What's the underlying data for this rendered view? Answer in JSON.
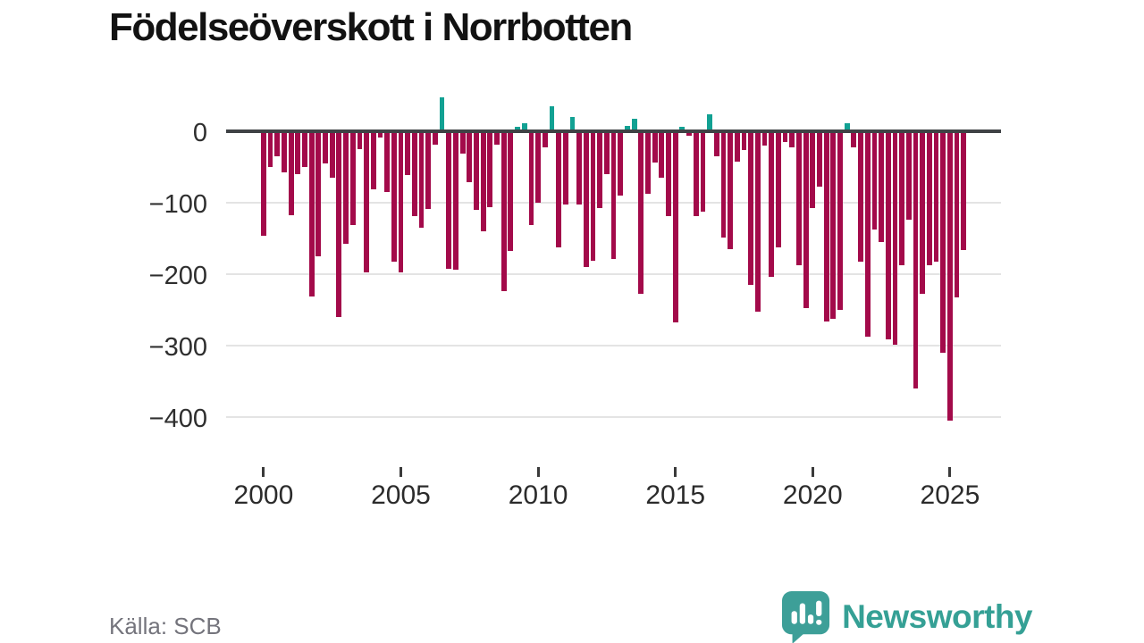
{
  "chart_data": {
    "type": "bar",
    "title": "Födelseöverskott i Norrbotten",
    "source": "Källa: SCB",
    "periodicity": "quarterly",
    "grid": true,
    "legend": false,
    "xlabel": "",
    "ylabel": "",
    "ylim": [
      -460,
      60
    ],
    "x_axis": {
      "ticks": [
        2000,
        2005,
        2010,
        2015,
        2020,
        2025
      ]
    },
    "y_axis": {
      "ticks": [
        0,
        -100,
        -200,
        -300,
        -400
      ],
      "tick_labels": [
        "0",
        "−100",
        "−200",
        "−300",
        "−400"
      ]
    },
    "colors": {
      "negative": "#a30a4a",
      "positive": "#12a193"
    },
    "categories": [
      "2000K1",
      "2000K2",
      "2000K3",
      "2000K4",
      "2001K1",
      "2001K2",
      "2001K3",
      "2001K4",
      "2002K1",
      "2002K2",
      "2002K3",
      "2002K4",
      "2003K1",
      "2003K2",
      "2003K3",
      "2003K4",
      "2004K1",
      "2004K2",
      "2004K3",
      "2004K4",
      "2005K1",
      "2005K2",
      "2005K3",
      "2005K4",
      "2006K1",
      "2006K2",
      "2006K3",
      "2006K4",
      "2007K1",
      "2007K2",
      "2007K3",
      "2007K4",
      "2008K1",
      "2008K2",
      "2008K3",
      "2008K4",
      "2009K1",
      "2009K2",
      "2009K3",
      "2009K4",
      "2010K1",
      "2010K2",
      "2010K3",
      "2010K4",
      "2011K1",
      "2011K2",
      "2011K3",
      "2011K4",
      "2012K1",
      "2012K2",
      "2012K3",
      "2012K4",
      "2013K1",
      "2013K2",
      "2013K3",
      "2013K4",
      "2014K1",
      "2014K2",
      "2014K3",
      "2014K4",
      "2015K1",
      "2015K2",
      "2015K3",
      "2015K4",
      "2016K1",
      "2016K2",
      "2016K3",
      "2016K4",
      "2017K1",
      "2017K2",
      "2017K3",
      "2017K4",
      "2018K1",
      "2018K2",
      "2018K3",
      "2018K4",
      "2019K1",
      "2019K2",
      "2019K3",
      "2019K4",
      "2020K1",
      "2020K2",
      "2020K3",
      "2020K4",
      "2021K1",
      "2021K2",
      "2021K3",
      "2021K4",
      "2022K1",
      "2022K2",
      "2022K3",
      "2022K4",
      "2023K1",
      "2023K2",
      "2023K3",
      "2023K4",
      "2024K1",
      "2024K2",
      "2024K3",
      "2024K4",
      "2025K1",
      "2025K2",
      "2025K3"
    ],
    "values": [
      -146,
      -50,
      -35,
      -58,
      -117,
      -60,
      -50,
      -231,
      -175,
      -45,
      -65,
      -260,
      -158,
      -131,
      -25,
      -198,
      -81,
      -9,
      -85,
      -183,
      -197,
      -61,
      -119,
      -135,
      -109,
      -19,
      45,
      -192,
      -194,
      -31,
      -71,
      -110,
      -140,
      -106,
      -19,
      -224,
      -167,
      4,
      9,
      -131,
      -100,
      -23,
      33,
      -163,
      -102,
      17,
      -102,
      -190,
      -181,
      -108,
      -60,
      -179,
      -90,
      5,
      15,
      -227,
      -88,
      -44,
      -65,
      -119,
      -267,
      4,
      -6,
      -119,
      -113,
      21,
      -35,
      -149,
      -165,
      -42,
      -26,
      -215,
      -253,
      -20,
      -204,
      -163,
      -15,
      -22,
      -188,
      -248,
      -108,
      -78,
      -266,
      -262,
      -250,
      9,
      -23,
      -183,
      -288,
      -137,
      -155,
      -291,
      -299,
      -187,
      -124,
      -360,
      -228,
      -187,
      -182,
      -310,
      -405,
      -233,
      -166
    ]
  },
  "branding": {
    "name": "Newsworthy",
    "icon_color": "#3d9f98",
    "text_color": "#35a095"
  }
}
